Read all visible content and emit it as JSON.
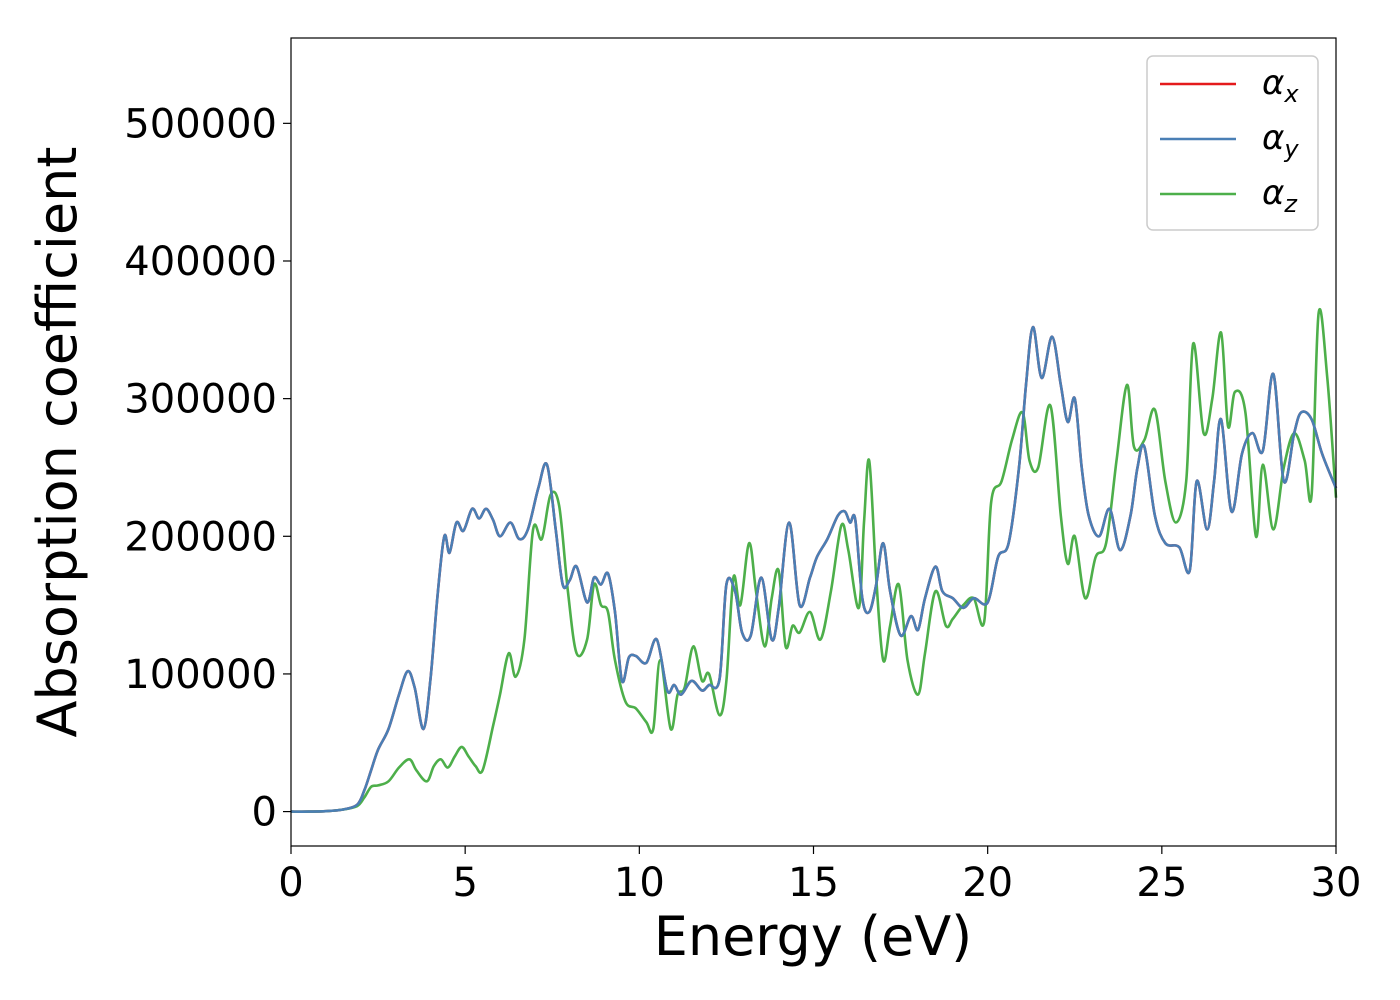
{
  "chart_data": {
    "type": "line",
    "title": "",
    "xlabel": "Energy (eV)",
    "ylabel": "Absorption coefficient",
    "xlim": [
      0,
      30
    ],
    "ylim": [
      -25000,
      562000
    ],
    "xticks": [
      0,
      5,
      10,
      15,
      20,
      25,
      30
    ],
    "yticks": [
      0,
      100000,
      200000,
      300000,
      400000,
      500000
    ],
    "grid": false,
    "legend_position": "top-right",
    "series": [
      {
        "name": "α",
        "subscript": "x",
        "color": "#e41a1c",
        "x": [
          0,
          0.5,
          1,
          1.5,
          1.9,
          2.1,
          2.3,
          2.5,
          2.8,
          3.1,
          3.35,
          3.55,
          3.8,
          4.0,
          4.2,
          4.4,
          4.55,
          4.75,
          4.95,
          5.2,
          5.4,
          5.6,
          5.8,
          6.0,
          6.3,
          6.55,
          6.8,
          7.1,
          7.35,
          7.6,
          7.8,
          8.0,
          8.2,
          8.5,
          8.7,
          8.9,
          9.1,
          9.3,
          9.5,
          9.7,
          9.9,
          10.2,
          10.5,
          10.8,
          11.0,
          11.2,
          11.5,
          11.8,
          12.0,
          12.3,
          12.5,
          12.75,
          12.95,
          13.2,
          13.5,
          13.8,
          14.0,
          14.3,
          14.6,
          14.9,
          15.1,
          15.4,
          15.7,
          15.9,
          16.05,
          16.2,
          16.4,
          16.6,
          16.8,
          17.0,
          17.2,
          17.5,
          17.8,
          18.0,
          18.2,
          18.5,
          18.7,
          19.0,
          19.3,
          19.6,
          20.0,
          20.3,
          20.6,
          20.9,
          21.1,
          21.3,
          21.55,
          21.85,
          22.1,
          22.3,
          22.5,
          22.7,
          22.9,
          23.2,
          23.5,
          23.8,
          24.1,
          24.3,
          24.5,
          24.8,
          25.1,
          25.5,
          25.8,
          26.0,
          26.3,
          26.5,
          26.7,
          27.0,
          27.3,
          27.6,
          27.9,
          28.2,
          28.5,
          28.8,
          29.0,
          29.3,
          29.6,
          30.0
        ],
        "values": [
          0,
          0,
          300,
          1500,
          5000,
          15000,
          30000,
          45000,
          60000,
          85000,
          102000,
          90000,
          60000,
          95000,
          155000,
          200000,
          188000,
          210000,
          204000,
          220000,
          213000,
          220000,
          212000,
          200000,
          210000,
          198000,
          205000,
          235000,
          252000,
          205000,
          165000,
          168000,
          178000,
          152000,
          170000,
          165000,
          173000,
          145000,
          95000,
          112000,
          113000,
          108000,
          125000,
          88000,
          92000,
          85000,
          95000,
          88000,
          92000,
          96000,
          165000,
          160000,
          130000,
          128000,
          170000,
          125000,
          148000,
          210000,
          150000,
          170000,
          185000,
          198000,
          215000,
          218000,
          210000,
          212000,
          155000,
          145000,
          165000,
          195000,
          160000,
          128000,
          142000,
          132000,
          155000,
          178000,
          160000,
          155000,
          148000,
          155000,
          152000,
          185000,
          195000,
          250000,
          310000,
          352000,
          315000,
          345000,
          310000,
          283000,
          300000,
          250000,
          215000,
          200000,
          220000,
          190000,
          215000,
          250000,
          265000,
          215000,
          195000,
          192000,
          175000,
          240000,
          205000,
          240000,
          285000,
          218000,
          260000,
          275000,
          262000,
          318000,
          240000,
          275000,
          290000,
          285000,
          260000,
          235000
        ]
      },
      {
        "name": "α",
        "subscript": "y",
        "color": "#4a7fb5",
        "x": [
          0,
          0.5,
          1,
          1.5,
          1.9,
          2.1,
          2.3,
          2.5,
          2.8,
          3.1,
          3.35,
          3.55,
          3.8,
          4.0,
          4.2,
          4.4,
          4.55,
          4.75,
          4.95,
          5.2,
          5.4,
          5.6,
          5.8,
          6.0,
          6.3,
          6.55,
          6.8,
          7.1,
          7.35,
          7.6,
          7.8,
          8.0,
          8.2,
          8.5,
          8.7,
          8.9,
          9.1,
          9.3,
          9.5,
          9.7,
          9.9,
          10.2,
          10.5,
          10.8,
          11.0,
          11.2,
          11.5,
          11.8,
          12.0,
          12.3,
          12.5,
          12.75,
          12.95,
          13.2,
          13.5,
          13.8,
          14.0,
          14.3,
          14.6,
          14.9,
          15.1,
          15.4,
          15.7,
          15.9,
          16.05,
          16.2,
          16.4,
          16.6,
          16.8,
          17.0,
          17.2,
          17.5,
          17.8,
          18.0,
          18.2,
          18.5,
          18.7,
          19.0,
          19.3,
          19.6,
          20.0,
          20.3,
          20.6,
          20.9,
          21.1,
          21.3,
          21.55,
          21.85,
          22.1,
          22.3,
          22.5,
          22.7,
          22.9,
          23.2,
          23.5,
          23.8,
          24.1,
          24.3,
          24.5,
          24.8,
          25.1,
          25.5,
          25.8,
          26.0,
          26.3,
          26.5,
          26.7,
          27.0,
          27.3,
          27.6,
          27.9,
          28.2,
          28.5,
          28.8,
          29.0,
          29.3,
          29.6,
          30.0
        ],
        "values": [
          0,
          0,
          300,
          1500,
          5000,
          15000,
          30000,
          45000,
          60000,
          85000,
          102000,
          90000,
          60000,
          95000,
          155000,
          200000,
          188000,
          210000,
          204000,
          220000,
          213000,
          220000,
          212000,
          200000,
          210000,
          198000,
          205000,
          235000,
          252000,
          205000,
          165000,
          168000,
          178000,
          152000,
          170000,
          165000,
          173000,
          145000,
          95000,
          112000,
          113000,
          108000,
          125000,
          88000,
          92000,
          85000,
          95000,
          88000,
          92000,
          96000,
          165000,
          160000,
          130000,
          128000,
          170000,
          125000,
          148000,
          210000,
          150000,
          170000,
          185000,
          198000,
          215000,
          218000,
          210000,
          212000,
          155000,
          145000,
          165000,
          195000,
          160000,
          128000,
          142000,
          132000,
          155000,
          178000,
          160000,
          155000,
          148000,
          155000,
          152000,
          185000,
          195000,
          250000,
          310000,
          352000,
          315000,
          345000,
          310000,
          283000,
          300000,
          250000,
          215000,
          200000,
          220000,
          190000,
          215000,
          250000,
          265000,
          215000,
          195000,
          192000,
          175000,
          240000,
          205000,
          240000,
          285000,
          218000,
          260000,
          275000,
          262000,
          318000,
          240000,
          275000,
          290000,
          285000,
          260000,
          235000
        ]
      },
      {
        "name": "α",
        "subscript": "z",
        "color": "#4daf4a",
        "x": [
          0,
          0.5,
          1,
          1.5,
          1.9,
          2.1,
          2.3,
          2.5,
          2.8,
          3.1,
          3.4,
          3.6,
          3.9,
          4.1,
          4.3,
          4.5,
          4.7,
          4.9,
          5.1,
          5.3,
          5.5,
          5.8,
          6.0,
          6.25,
          6.45,
          6.7,
          6.95,
          7.2,
          7.45,
          7.7,
          7.95,
          8.2,
          8.5,
          8.7,
          8.9,
          9.1,
          9.3,
          9.6,
          9.9,
          10.2,
          10.4,
          10.6,
          10.9,
          11.1,
          11.3,
          11.55,
          11.8,
          12.0,
          12.3,
          12.5,
          12.7,
          12.9,
          13.15,
          13.35,
          13.6,
          13.8,
          14.0,
          14.2,
          14.4,
          14.6,
          14.9,
          15.2,
          15.5,
          15.8,
          16.0,
          16.3,
          16.45,
          16.6,
          16.8,
          17.0,
          17.2,
          17.45,
          17.7,
          18.0,
          18.2,
          18.5,
          18.8,
          19.0,
          19.3,
          19.6,
          19.9,
          20.1,
          20.4,
          20.7,
          21.0,
          21.2,
          21.45,
          21.8,
          22.1,
          22.3,
          22.5,
          22.8,
          23.1,
          23.4,
          23.7,
          24.0,
          24.2,
          24.5,
          24.8,
          25.1,
          25.4,
          25.7,
          25.9,
          26.2,
          26.45,
          26.7,
          26.9,
          27.1,
          27.4,
          27.7,
          27.9,
          28.2,
          28.5,
          28.8,
          29.1,
          29.3,
          29.5,
          29.75,
          30.0
        ],
        "values": [
          0,
          0,
          300,
          1500,
          4000,
          10000,
          18000,
          19000,
          22000,
          32000,
          38000,
          30000,
          22000,
          33000,
          38000,
          32000,
          40000,
          47000,
          40000,
          33000,
          30000,
          62000,
          85000,
          115000,
          98000,
          125000,
          205000,
          198000,
          230000,
          222000,
          160000,
          115000,
          125000,
          165000,
          150000,
          145000,
          110000,
          80000,
          75000,
          65000,
          60000,
          110000,
          60000,
          85000,
          90000,
          120000,
          95000,
          100000,
          70000,
          95000,
          170000,
          150000,
          195000,
          160000,
          120000,
          155000,
          175000,
          120000,
          135000,
          130000,
          145000,
          125000,
          160000,
          208000,
          190000,
          148000,
          210000,
          255000,
          170000,
          110000,
          135000,
          165000,
          110000,
          85000,
          115000,
          160000,
          135000,
          140000,
          150000,
          155000,
          138000,
          225000,
          240000,
          270000,
          290000,
          255000,
          250000,
          295000,
          215000,
          180000,
          200000,
          155000,
          185000,
          195000,
          255000,
          310000,
          265000,
          270000,
          292000,
          240000,
          210000,
          240000,
          340000,
          275000,
          300000,
          348000,
          280000,
          305000,
          290000,
          200000,
          252000,
          205000,
          250000,
          275000,
          255000,
          230000,
          362000,
          315000,
          228000
        ]
      }
    ]
  }
}
